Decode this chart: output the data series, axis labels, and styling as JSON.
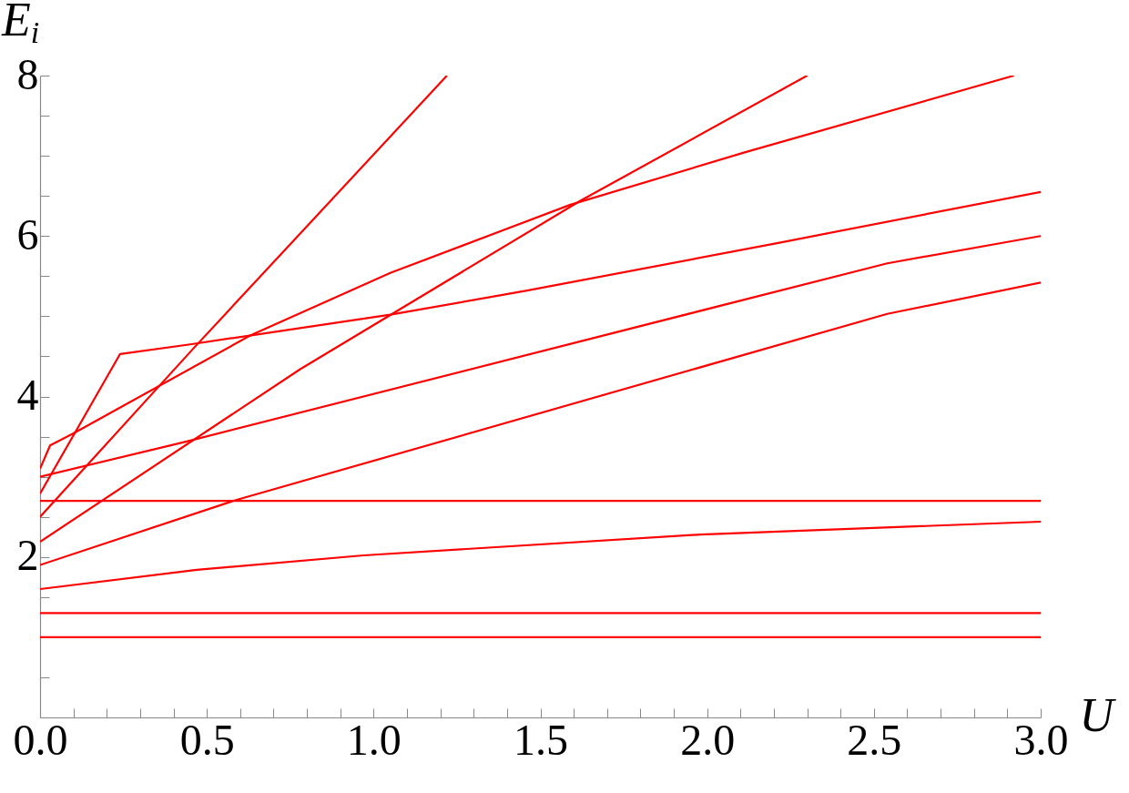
{
  "chart_data": {
    "type": "line",
    "xlabel": "U",
    "ylabel": "E$_{i}$",
    "xlim": [
      0,
      3
    ],
    "ylim": [
      0,
      8
    ],
    "xticks": [
      {
        "value": 0,
        "label": "0.0"
      },
      {
        "value": 0.1,
        "label": null
      },
      {
        "value": 0.2,
        "label": null
      },
      {
        "value": 0.3,
        "label": null
      },
      {
        "value": 0.4,
        "label": null
      },
      {
        "value": 0.5,
        "label": "0.5"
      },
      {
        "value": 0.6,
        "label": null
      },
      {
        "value": 0.7,
        "label": null
      },
      {
        "value": 0.8,
        "label": null
      },
      {
        "value": 0.9,
        "label": null
      },
      {
        "value": 1,
        "label": "1.0"
      },
      {
        "value": 1.1,
        "label": null
      },
      {
        "value": 1.2,
        "label": null
      },
      {
        "value": 1.3,
        "label": null
      },
      {
        "value": 1.4,
        "label": null
      },
      {
        "value": 1.5,
        "label": "1.5"
      },
      {
        "value": 1.6,
        "label": null
      },
      {
        "value": 1.7,
        "label": null
      },
      {
        "value": 1.8,
        "label": null
      },
      {
        "value": 1.9,
        "label": null
      },
      {
        "value": 2,
        "label": "2.0"
      },
      {
        "value": 2.1,
        "label": null
      },
      {
        "value": 2.2,
        "label": null
      },
      {
        "value": 2.3,
        "label": null
      },
      {
        "value": 2.4,
        "label": null
      },
      {
        "value": 2.5,
        "label": "2.5"
      },
      {
        "value": 2.6,
        "label": null
      },
      {
        "value": 2.7,
        "label": null
      },
      {
        "value": 2.8,
        "label": null
      },
      {
        "value": 2.9,
        "label": null
      },
      {
        "value": 3,
        "label": "3.0"
      }
    ],
    "yticks": [
      {
        "value": 0,
        "label": null
      },
      {
        "value": 0.5,
        "label": null
      },
      {
        "value": 1,
        "label": null
      },
      {
        "value": 1.5,
        "label": null
      },
      2,
      {
        "value": 2.5,
        "label": null
      },
      {
        "value": 3,
        "label": null
      },
      {
        "value": 3.5,
        "label": null
      },
      4,
      {
        "value": 4.5,
        "label": null
      },
      {
        "value": 5,
        "label": null
      },
      {
        "value": 5.5,
        "label": null
      },
      6,
      {
        "value": 6.5,
        "label": null
      },
      {
        "value": 7,
        "label": null
      },
      {
        "value": 7.5,
        "label": null
      },
      8
    ],
    "grid": false,
    "legend": false,
    "marker": "none",
    "line_style": "solid",
    "series": [
      {
        "color": "#ff0000",
        "x": [
          0,
          3
        ],
        "values": [
          1.0,
          1.0
        ]
      },
      {
        "color": "#ff0000",
        "x": [
          0,
          3
        ],
        "values": [
          1.3,
          1.3
        ]
      },
      {
        "color": "#ff0000",
        "x": [
          0,
          0.47,
          0.97,
          1.98,
          3
        ],
        "values": [
          1.6,
          1.84,
          2.02,
          2.28,
          2.44
        ]
      },
      {
        "color": "#ff0000",
        "x": [
          0,
          0.58,
          2.54,
          3
        ],
        "values": [
          1.9,
          2.7,
          5.03,
          5.42
        ]
      },
      {
        "color": "#ff0000",
        "x": [
          0,
          3
        ],
        "values": [
          2.7,
          2.7
        ]
      },
      {
        "color": "#ff0000",
        "x": [
          0,
          0.78,
          1.62,
          2.3
        ],
        "values": [
          2.19,
          4.34,
          6.44,
          8
        ]
      },
      {
        "color": "#ff0000",
        "x": [
          0,
          0.46,
          1.22
        ],
        "values": [
          2.5,
          4.6,
          8
        ]
      },
      {
        "color": "#ff0000",
        "x": [
          0,
          0.24,
          0.45,
          1.05,
          1.46,
          2.22,
          3
        ],
        "values": [
          2.79,
          4.53,
          4.65,
          5.02,
          5.32,
          5.92,
          6.55
        ]
      },
      {
        "color": "#ff0000",
        "x": [
          0,
          0.44,
          2.54,
          3
        ],
        "values": [
          3.0,
          3.44,
          5.66,
          6.0
        ]
      },
      {
        "color": "#ff0000",
        "x": [
          0,
          0.03,
          0.1,
          0.63,
          1.05,
          1.59,
          2.11,
          2.92
        ],
        "values": [
          3.1,
          3.39,
          3.54,
          4.76,
          5.54,
          6.39,
          7.04,
          8
        ]
      }
    ]
  }
}
